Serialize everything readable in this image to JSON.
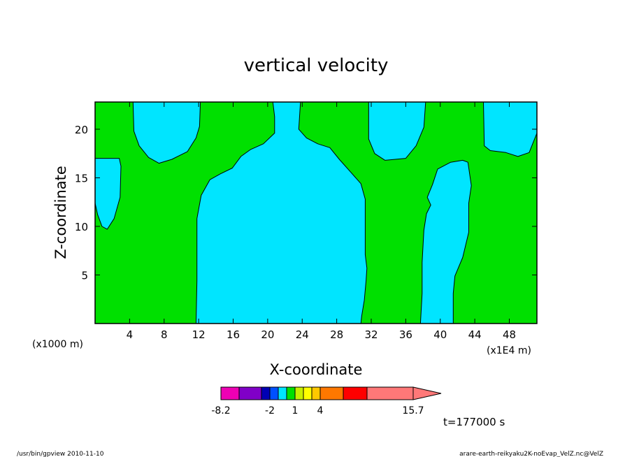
{
  "footer": {
    "left": "/usr/bin/gpview  2010-11-10",
    "right": "arare-earth-reikyaku2K-noEvap_VelZ.nc@VelZ"
  },
  "colors": {
    "background_fill": "#00e000",
    "contour_fill": "#00e5ff",
    "contour_line": "#000000"
  },
  "chart_data": {
    "type": "heatmap",
    "title": "vertical velocity",
    "xlabel": "X-coordinate",
    "ylabel": "Z-coordinate",
    "x_unit_left": "(x1000 m)",
    "x_unit_right": "(x1E4 m)",
    "time_label": "t=177000 s",
    "xlim": [
      0,
      51.2
    ],
    "ylim": [
      0,
      22.8
    ],
    "x_ticks": [
      4,
      8,
      12,
      16,
      20,
      24,
      28,
      32,
      36,
      40,
      44,
      48
    ],
    "y_ticks": [
      5,
      10,
      15,
      20
    ],
    "colorbar": {
      "levels": [
        -8.2,
        -6,
        -4,
        -2,
        -1,
        0,
        1,
        2,
        3,
        4,
        7,
        10,
        15.7
      ],
      "colors": [
        "#ee00b4",
        "#8000c8",
        "#0000b4",
        "#0050ff",
        "#00e5ff",
        "#00e000",
        "#c8f000",
        "#ffff00",
        "#ffc800",
        "#ff7800",
        "#ff0000",
        "#ff7878"
      ],
      "labels": [
        "-8.2",
        "-2",
        "1",
        "4",
        "15.7"
      ],
      "label_values": [
        -8.2,
        -2,
        1,
        4,
        15.7
      ]
    },
    "regions": [
      {
        "name": "region-a",
        "points": [
          [
            0,
            17
          ],
          [
            2.8,
            17
          ],
          [
            3,
            16.2
          ],
          [
            2.9,
            13
          ],
          [
            2.2,
            10.8
          ],
          [
            1.4,
            9.7
          ],
          [
            0.8,
            10
          ],
          [
            0.3,
            11.2
          ],
          [
            0,
            12.4
          ]
        ]
      },
      {
        "name": "region-b",
        "points": [
          [
            4.4,
            22.8
          ],
          [
            12.2,
            22.8
          ],
          [
            12.1,
            20.3
          ],
          [
            11.7,
            19.1
          ],
          [
            10.7,
            17.7
          ],
          [
            8.9,
            16.9
          ],
          [
            7.4,
            16.5
          ],
          [
            6.2,
            17.1
          ],
          [
            5.1,
            18.3
          ],
          [
            4.5,
            19.8
          ]
        ]
      },
      {
        "name": "region-c",
        "points": [
          [
            20.6,
            22.8
          ],
          [
            23.8,
            22.8
          ],
          [
            23.6,
            20
          ],
          [
            24.5,
            19.1
          ],
          [
            25.8,
            18.5
          ],
          [
            27.2,
            18.1
          ],
          [
            28.3,
            16.9
          ],
          [
            29.6,
            15.6
          ],
          [
            30.8,
            14.4
          ],
          [
            31.3,
            12.8
          ],
          [
            31.3,
            7.1
          ],
          [
            31.5,
            5.7
          ],
          [
            31.4,
            4.4
          ],
          [
            31.2,
            2.4
          ],
          [
            30.9,
            0.8
          ],
          [
            30.8,
            0
          ],
          [
            11.7,
            0
          ],
          [
            11.8,
            4.4
          ],
          [
            11.8,
            10.8
          ],
          [
            12.3,
            13.2
          ],
          [
            13.3,
            14.8
          ],
          [
            14.5,
            15.4
          ],
          [
            15.9,
            16
          ],
          [
            16.9,
            17.2
          ],
          [
            18,
            17.9
          ],
          [
            19.5,
            18.5
          ],
          [
            20.8,
            19.6
          ],
          [
            20.8,
            21.3
          ]
        ]
      },
      {
        "name": "region-d",
        "points": [
          [
            31.7,
            22.8
          ],
          [
            38.3,
            22.8
          ],
          [
            38.1,
            20.2
          ],
          [
            37.2,
            18.3
          ],
          [
            36,
            17
          ],
          [
            33.6,
            16.8
          ],
          [
            32.4,
            17.5
          ],
          [
            31.7,
            19
          ]
        ]
      },
      {
        "name": "region-e",
        "points": [
          [
            39.1,
            14.3
          ],
          [
            39.7,
            15.9
          ],
          [
            41.2,
            16.6
          ],
          [
            42.6,
            16.8
          ],
          [
            43.2,
            16.6
          ],
          [
            43.6,
            14.2
          ],
          [
            43.3,
            12.4
          ],
          [
            43.3,
            9.4
          ],
          [
            42.6,
            6.8
          ],
          [
            41.7,
            4.9
          ],
          [
            41.5,
            3.1
          ],
          [
            41.5,
            0
          ],
          [
            37.7,
            0
          ],
          [
            37.9,
            3.1
          ],
          [
            37.9,
            6.3
          ],
          [
            38.1,
            9.6
          ],
          [
            38.4,
            11.3
          ],
          [
            38.9,
            12.2
          ],
          [
            38.5,
            13
          ]
        ]
      },
      {
        "name": "region-f",
        "points": [
          [
            45,
            22.8
          ],
          [
            51.2,
            22.8
          ],
          [
            51.2,
            19.6
          ],
          [
            50.3,
            17.6
          ],
          [
            49,
            17.2
          ],
          [
            47.6,
            17.6
          ],
          [
            45.8,
            17.8
          ],
          [
            45.1,
            18.3
          ]
        ]
      }
    ]
  }
}
